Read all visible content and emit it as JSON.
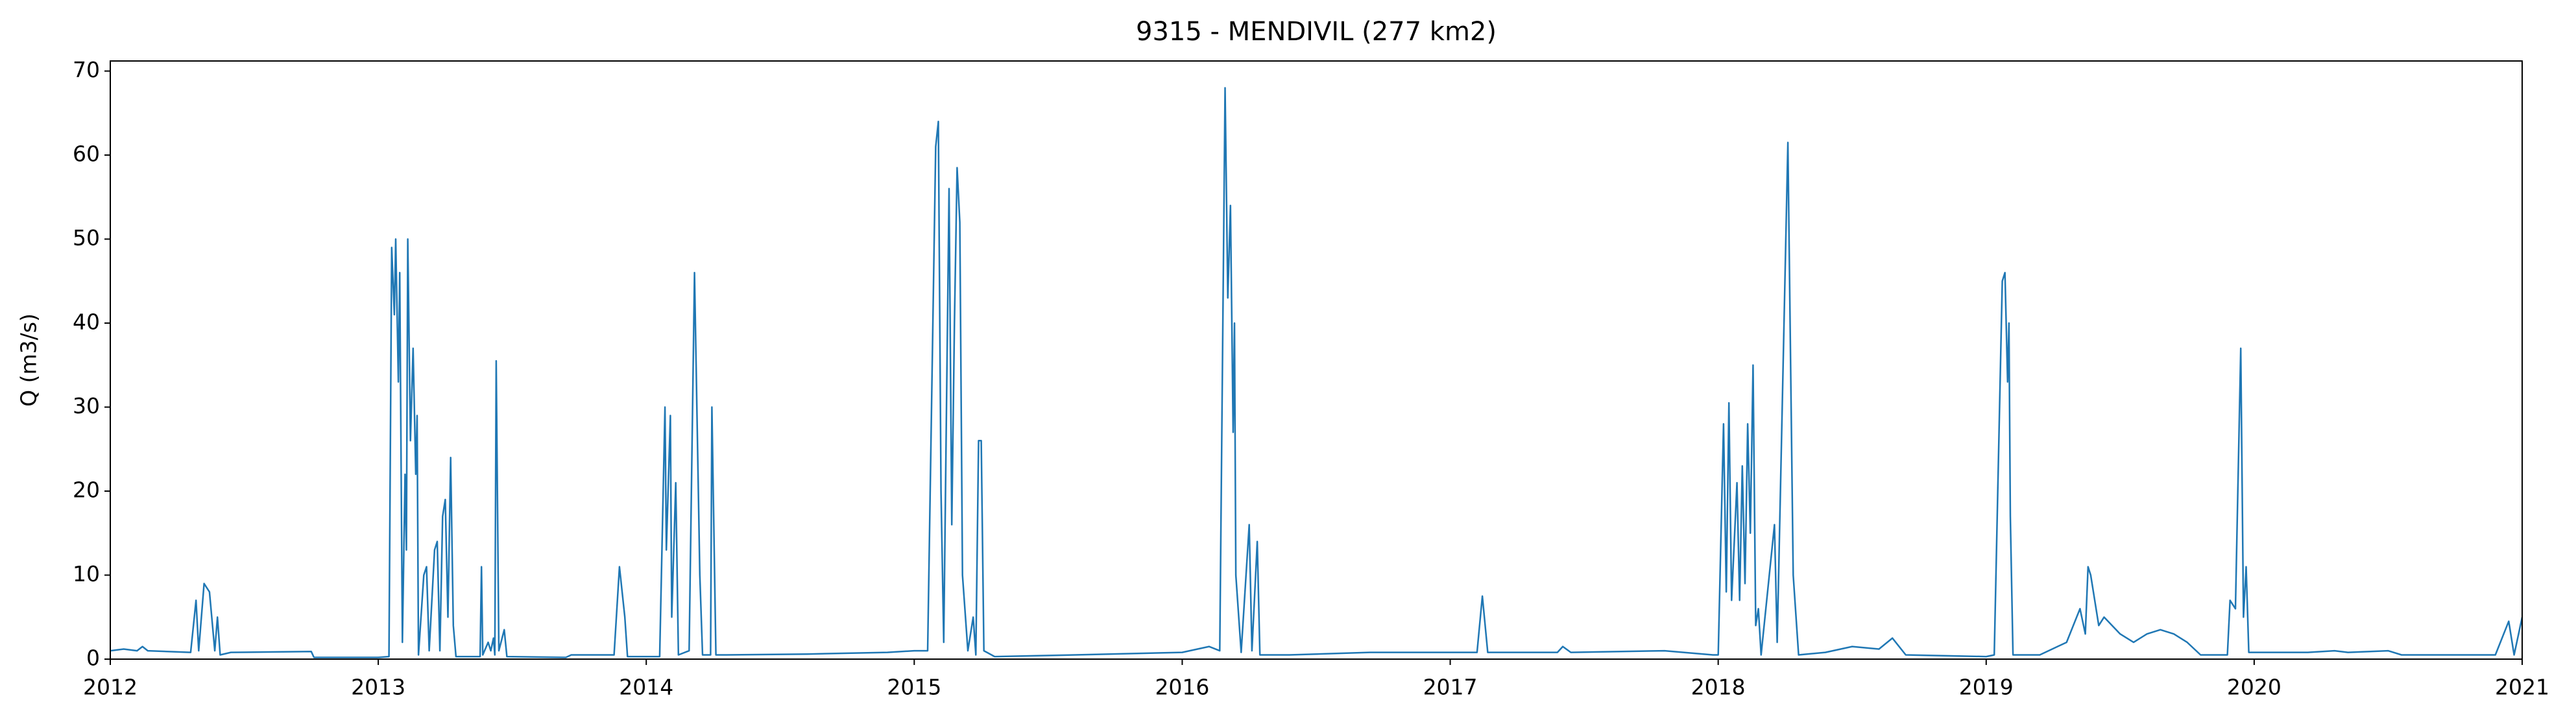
{
  "chart_data": {
    "type": "line",
    "title": "9315 - MENDIVIL (277 km2)",
    "y_label": "Q (m3/s)",
    "x": [
      2012.0,
      2012.05,
      2012.1,
      2012.12,
      2012.14,
      2012.3,
      2012.32,
      2012.33,
      2012.35,
      2012.37,
      2012.39,
      2012.4,
      2012.41,
      2012.45,
      2012.75,
      2012.76,
      2013.0,
      2013.04,
      2013.05,
      2013.06,
      2013.065,
      2013.075,
      2013.08,
      2013.09,
      2013.1,
      2013.105,
      2013.11,
      2013.12,
      2013.13,
      2013.14,
      2013.145,
      2013.15,
      2013.17,
      2013.18,
      2013.19,
      2013.21,
      2013.22,
      2013.23,
      2013.24,
      2013.25,
      2013.26,
      2013.27,
      2013.28,
      2013.29,
      2013.38,
      2013.385,
      2013.39,
      2013.41,
      2013.42,
      2013.43,
      2013.435,
      2013.44,
      2013.45,
      2013.47,
      2013.48,
      2013.7,
      2013.72,
      2013.88,
      2013.9,
      2013.92,
      2013.93,
      2014.0,
      2014.05,
      2014.07,
      2014.075,
      2014.09,
      2014.095,
      2014.11,
      2014.12,
      2014.16,
      2014.18,
      2014.2,
      2014.21,
      2014.24,
      2014.245,
      2014.26,
      2014.3,
      2014.6,
      2014.9,
      2015.0,
      2015.05,
      2015.08,
      2015.09,
      2015.1,
      2015.11,
      2015.13,
      2015.14,
      2015.15,
      2015.16,
      2015.17,
      2015.18,
      2015.2,
      2015.22,
      2015.23,
      2015.24,
      2015.25,
      2015.26,
      2015.3,
      2015.6,
      2016.0,
      2016.1,
      2016.14,
      2016.16,
      2016.17,
      2016.18,
      2016.19,
      2016.195,
      2016.2,
      2016.22,
      2016.25,
      2016.26,
      2016.28,
      2016.29,
      2016.4,
      2016.7,
      2017.0,
      2017.1,
      2017.12,
      2017.14,
      2017.4,
      2017.42,
      2017.45,
      2017.8,
      2017.98,
      2018.0,
      2018.02,
      2018.03,
      2018.04,
      2018.05,
      2018.07,
      2018.08,
      2018.09,
      2018.1,
      2018.11,
      2018.12,
      2018.13,
      2018.14,
      2018.15,
      2018.16,
      2018.21,
      2018.22,
      2018.26,
      2018.28,
      2018.3,
      2018.4,
      2018.5,
      2018.6,
      2018.65,
      2018.7,
      2019.0,
      2019.03,
      2019.06,
      2019.07,
      2019.08,
      2019.085,
      2019.09,
      2019.1,
      2019.2,
      2019.3,
      2019.35,
      2019.37,
      2019.38,
      2019.39,
      2019.42,
      2019.44,
      2019.5,
      2019.55,
      2019.6,
      2019.65,
      2019.7,
      2019.75,
      2019.8,
      2019.9,
      2019.91,
      2019.93,
      2019.95,
      2019.96,
      2019.97,
      2019.98,
      2020.2,
      2020.3,
      2020.35,
      2020.5,
      2020.55,
      2020.9,
      2020.95,
      2020.97,
      2021.0
    ],
    "series": [
      {
        "color": "#1f77b4",
        "values": [
          1.0,
          1.2,
          1.0,
          1.5,
          1.0,
          0.8,
          7,
          1,
          9,
          8,
          1,
          5,
          0.5,
          0.8,
          0.9,
          0.2,
          0.2,
          0.3,
          49,
          41,
          50,
          33,
          46,
          2,
          22,
          13,
          50,
          26,
          37,
          22,
          29,
          0.5,
          10,
          11,
          1,
          13,
          14,
          1,
          17,
          19,
          5,
          24,
          4,
          0.3,
          0.3,
          11,
          0.5,
          2,
          1,
          2.5,
          0.5,
          35.5,
          1,
          3.5,
          0.3,
          0.2,
          0.5,
          0.5,
          11,
          5,
          0.3,
          0.3,
          0.3,
          30,
          13,
          29,
          5,
          21,
          0.5,
          1,
          46,
          10,
          0.5,
          0.5,
          30,
          0.5,
          0.5,
          0.6,
          0.8,
          1,
          1,
          61,
          64,
          20,
          2,
          56,
          16,
          40,
          58.5,
          52,
          10,
          1,
          5,
          0.5,
          26,
          26,
          1,
          0.3,
          0.5,
          0.8,
          1.5,
          1,
          68,
          43,
          54,
          27,
          40,
          10,
          0.8,
          16,
          1,
          14,
          0.5,
          0.5,
          0.8,
          0.8,
          0.8,
          7.5,
          0.8,
          0.8,
          1.5,
          0.8,
          1.0,
          0.5,
          0.5,
          28,
          8,
          30.5,
          7,
          21,
          7,
          23,
          9,
          28,
          15,
          35,
          4,
          6,
          0.5,
          16,
          2,
          61.5,
          10,
          0.5,
          0.8,
          1.5,
          1.2,
          2.5,
          0.5,
          0.3,
          0.5,
          45,
          46,
          33,
          40,
          17,
          0.5,
          0.5,
          2,
          6,
          3,
          11,
          10,
          4,
          5,
          3,
          2,
          3,
          3.5,
          3,
          2,
          0.5,
          0.5,
          7,
          6,
          37,
          5,
          11,
          0.8,
          0.8,
          1,
          0.8,
          1,
          0.5,
          0.5,
          4.5,
          0.5,
          5
        ]
      }
    ],
    "xlim": [
      2012,
      2021
    ],
    "xticks": [
      2012,
      2013,
      2014,
      2015,
      2016,
      2017,
      2018,
      2019,
      2020,
      2021
    ],
    "ylim": [
      0,
      71.2
    ],
    "yticks": [
      0,
      10,
      20,
      30,
      40,
      50,
      60,
      70
    ]
  }
}
